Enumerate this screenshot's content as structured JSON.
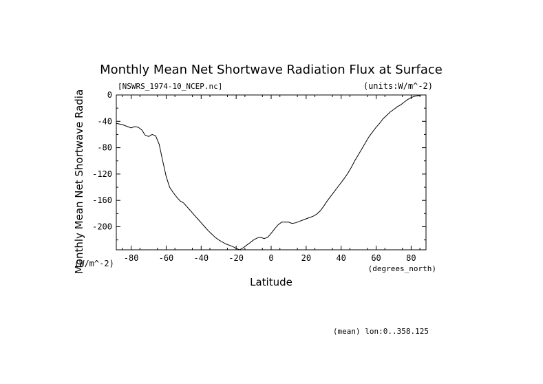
{
  "chart_data": {
    "type": "line",
    "title": "Monthly Mean Net Shortwave Radiation Flux at Surface",
    "subtitle_left": "[NSWRS_1974-10_NCEP.nc]",
    "subtitle_right": "(units:W/m^-2)",
    "xlabel": "Latitude",
    "x_units": "(degrees_north)",
    "ylabel": "Monthly Mean Net Shortwave Radia",
    "y_units": "(W/m^-2)",
    "footnote": "(mean) lon:0..358.125",
    "xlim": [
      -88.5,
      88.5
    ],
    "ylim": [
      -235,
      0
    ],
    "x_ticks": [
      -80,
      -60,
      -40,
      -20,
      0,
      20,
      40,
      60,
      80
    ],
    "x_tick_labels": [
      "-80",
      "-60",
      "-40",
      "-20",
      "0",
      "20",
      "40",
      "60",
      "80"
    ],
    "y_ticks": [
      0,
      -40,
      -80,
      -120,
      -160,
      -200
    ],
    "y_tick_labels": [
      "0",
      "-40",
      "-80",
      "-120",
      "-160",
      "-200"
    ],
    "grid": false,
    "series": [
      {
        "x": [
          -88.5,
          -85,
          -82,
          -80,
          -78,
          -76,
          -74,
          -72,
          -70,
          -68,
          -66,
          -64,
          -62,
          -60,
          -58,
          -56,
          -54,
          -52,
          -50,
          -48,
          -46,
          -44,
          -42,
          -40,
          -38,
          -36,
          -34,
          -32,
          -30,
          -28,
          -26,
          -24,
          -22,
          -20,
          -18,
          -16,
          -14,
          -12,
          -10,
          -8,
          -6,
          -4,
          -2,
          0,
          2,
          4,
          6,
          8,
          10,
          12,
          14,
          16,
          18,
          20,
          22,
          24,
          26,
          28,
          30,
          32,
          34,
          36,
          38,
          40,
          42,
          44,
          46,
          48,
          50,
          52,
          54,
          56,
          58,
          60,
          62,
          64,
          66,
          68,
          70,
          72,
          74,
          76,
          78,
          80,
          82,
          84,
          86,
          88.5
        ],
        "y": [
          -43,
          -45,
          -48,
          -50,
          -48,
          -49,
          -53,
          -61,
          -63,
          -60,
          -62,
          -75,
          -100,
          -124,
          -140,
          -148,
          -155,
          -161,
          -164,
          -170,
          -176,
          -182,
          -188,
          -194,
          -200,
          -206,
          -211,
          -216,
          -220,
          -223,
          -226,
          -228,
          -230,
          -233,
          -235,
          -232,
          -228,
          -224,
          -220,
          -217,
          -216,
          -218,
          -216,
          -210,
          -203,
          -197,
          -193,
          -193,
          -193,
          -195,
          -194,
          -192,
          -190,
          -188,
          -186,
          -184,
          -181,
          -176,
          -169,
          -161,
          -154,
          -147,
          -140,
          -133,
          -126,
          -118,
          -109,
          -99,
          -90,
          -81,
          -72,
          -63,
          -56,
          -49,
          -43,
          -36,
          -31,
          -26,
          -22,
          -18,
          -15,
          -11,
          -7,
          -4,
          -2,
          -1,
          0,
          0
        ]
      }
    ]
  }
}
